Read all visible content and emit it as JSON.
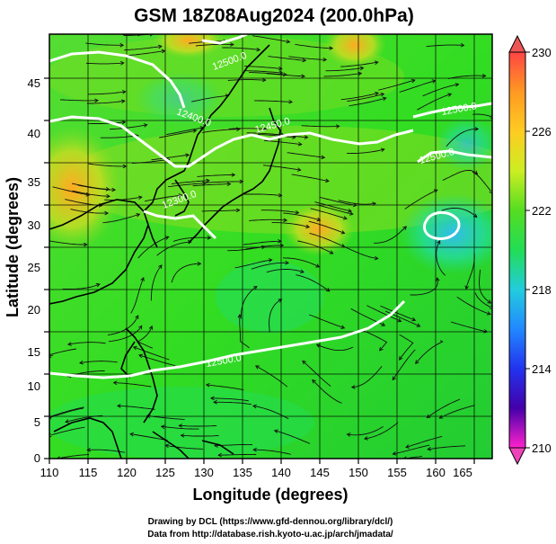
{
  "title": "GSM 18Z08Aug2024 (200.0hPa)",
  "xlabel": "Longitude (degrees)",
  "ylabel": "Latitude  (degrees)",
  "credit_line1": "Drawing by DCL (https://www.gfd-dennou.org/library/dcl/)",
  "credit_line2": "Data from http://database.rish.kyoto-u.ac.jp/arch/jmadata/",
  "x_ticks": [
    "110",
    "115",
    "120",
    "125",
    "130",
    "135",
    "140",
    "145",
    "150",
    "155",
    "160",
    "165"
  ],
  "y_ticks": [
    "45",
    "40",
    "35",
    "30",
    "25",
    "20",
    "15",
    "10",
    "5",
    "0"
  ],
  "colorbar": {
    "labels": [
      "230",
      "226",
      "222",
      "218",
      "214",
      "210"
    ],
    "colors": [
      "#d7191c",
      "#fdae61",
      "#a6d96a",
      "#1a9641",
      "#2b83ba",
      "#3288bd",
      "#0000ff",
      "#ff00ff"
    ]
  },
  "contour_labels": [
    "12500.0",
    "12400.0",
    "12450.0",
    "12300.0",
    "12500.0",
    "12500.0",
    "12500.0"
  ],
  "chart_data": {
    "type": "heatmap",
    "title": "GSM 18Z08Aug2024 (200.0hPa)",
    "xlabel": "Longitude (degrees)",
    "ylabel": "Latitude  (degrees)",
    "xlim": [
      110,
      170
    ],
    "ylim": [
      0,
      50
    ],
    "x_ticks": [
      110,
      115,
      120,
      125,
      130,
      135,
      140,
      145,
      150,
      155,
      160,
      165
    ],
    "y_ticks": [
      0,
      5,
      10,
      15,
      20,
      25,
      30,
      35,
      40,
      45
    ],
    "colorbar_range": [
      210,
      230
    ],
    "colorbar_ticks": [
      210,
      214,
      218,
      222,
      226,
      230
    ],
    "contour_labels": [
      "12500.0",
      "12400.0",
      "12450.0",
      "12300.0",
      "12500.0",
      "12500.0",
      "12500.0"
    ]
  }
}
